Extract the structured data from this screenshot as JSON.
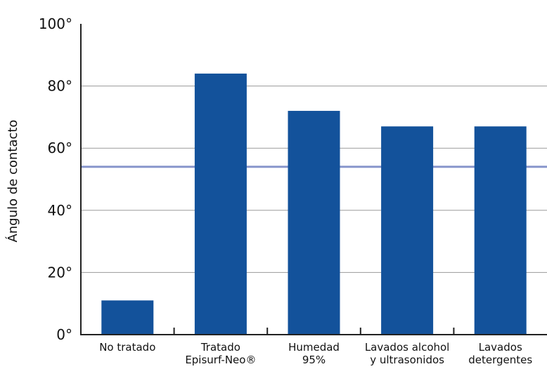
{
  "chart_data": {
    "type": "bar",
    "title": "",
    "xlabel": "",
    "ylabel": "Ángulo de contacto",
    "categories": [
      [
        "No tratado"
      ],
      [
        "Tratado",
        "Episurf-Neo®"
      ],
      [
        "Humedad",
        "95%"
      ],
      [
        "Lavados alcohol",
        "y ultrasonidos"
      ],
      [
        "Lavados",
        "detergentes"
      ]
    ],
    "values": [
      11,
      84,
      72,
      67,
      67
    ],
    "ylim": [
      0,
      100
    ],
    "yticks": [
      0,
      20,
      40,
      60,
      80,
      100
    ],
    "ytick_labels": [
      "0°",
      "20°",
      "40°",
      "60°",
      "80°",
      "100°"
    ],
    "reference_line": 54,
    "grid": true,
    "legend": "none",
    "colors": {
      "bar": "#13529b",
      "reference_line": "#8896cc",
      "grid": "#9a9a9a",
      "axis": "#222222"
    }
  }
}
